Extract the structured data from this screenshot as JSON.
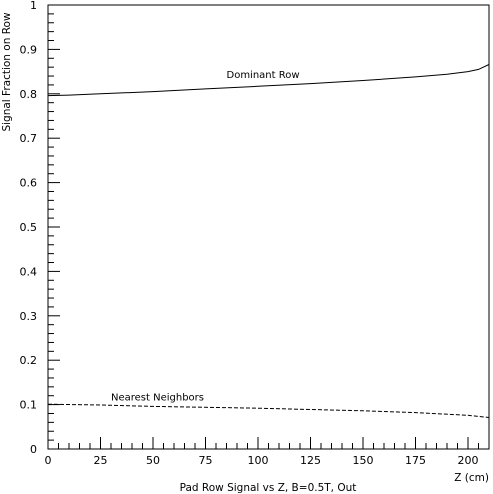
{
  "chart_data": {
    "type": "line",
    "xlabel": "Z (cm)",
    "ylabel": "Signal Fraction on Row",
    "caption": "Pad Row Signal vs Z, B=0.5T, Out",
    "xlim": [
      0,
      210
    ],
    "ylim": [
      0,
      1
    ],
    "x_ticks": [
      0,
      25,
      50,
      75,
      100,
      125,
      150,
      175,
      200
    ],
    "x_tick_labels": [
      "0",
      "25",
      "50",
      "75",
      "100",
      "125",
      "150",
      "175",
      "200"
    ],
    "y_ticks": [
      0,
      0.1,
      0.2,
      0.3,
      0.4,
      0.5,
      0.6,
      0.7,
      0.8,
      0.9,
      1
    ],
    "y_tick_labels": [
      "0",
      "0.1",
      "0.2",
      "0.3",
      "0.4",
      "0.5",
      "0.6",
      "0.7",
      "0.8",
      "0.9",
      "1"
    ],
    "grid": false,
    "series": [
      {
        "name": "Dominant Row",
        "style": "solid",
        "x": [
          0,
          10,
          25,
          50,
          75,
          100,
          125,
          150,
          175,
          190,
          200,
          205,
          210
        ],
        "y": [
          0.796,
          0.797,
          0.8,
          0.805,
          0.811,
          0.817,
          0.823,
          0.83,
          0.838,
          0.844,
          0.85,
          0.855,
          0.866
        ]
      },
      {
        "name": "Nearest Neighbors",
        "style": "dashed",
        "x": [
          0,
          25,
          50,
          75,
          100,
          125,
          150,
          175,
          200,
          210
        ],
        "y": [
          0.101,
          0.099,
          0.096,
          0.094,
          0.092,
          0.089,
          0.086,
          0.082,
          0.076,
          0.071
        ]
      }
    ]
  }
}
